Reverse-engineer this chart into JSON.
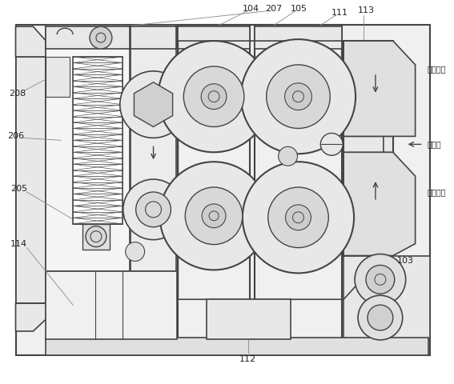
{
  "bg_color": "#ffffff",
  "line_color": "#444444",
  "label_color": "#222222",
  "down_text": "向下运动",
  "wedge_text": "檔形口",
  "up_text": "向上运动"
}
